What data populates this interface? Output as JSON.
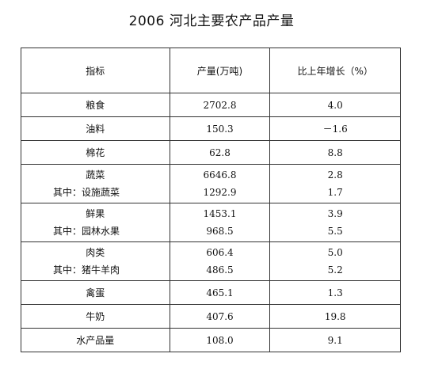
{
  "title": "2006 河北主要农产品产量",
  "headers": [
    "指标",
    "产量(万吨)",
    "比上年增长（%）"
  ],
  "rows": [
    {
      "lines": [
        {
          "name": "粮食",
          "output": "2702.8",
          "growth": "4.0"
        }
      ]
    },
    {
      "lines": [
        {
          "name": "油料",
          "output": "150.3",
          "growth": "－1.6"
        }
      ]
    },
    {
      "lines": [
        {
          "name": "棉花",
          "output": "62.8",
          "growth": "8.8"
        }
      ]
    },
    {
      "lines": [
        {
          "name": "蔬菜",
          "output": "6646.8",
          "growth": "2.8"
        },
        {
          "name": "其中：设施蔬菜",
          "output": "1292.9",
          "growth": "1.7"
        }
      ]
    },
    {
      "lines": [
        {
          "name": "鲜果",
          "output": "1453.1",
          "growth": "3.9"
        },
        {
          "name": "其中：园林水果",
          "output": "968.5",
          "growth": "5.5"
        }
      ]
    },
    {
      "lines": [
        {
          "name": "肉类",
          "output": "606.4",
          "growth": "5.0"
        },
        {
          "name": "其中：猪牛羊肉",
          "output": "486.5",
          "growth": "5.2"
        }
      ]
    },
    {
      "lines": [
        {
          "name": "禽蛋",
          "output": "465.1",
          "growth": "1.3"
        }
      ]
    },
    {
      "lines": [
        {
          "name": "牛奶",
          "output": "407.6",
          "growth": "19.8"
        }
      ]
    },
    {
      "lines": [
        {
          "name": "水产品量",
          "output": "108.0",
          "growth": "9.1"
        }
      ]
    }
  ]
}
